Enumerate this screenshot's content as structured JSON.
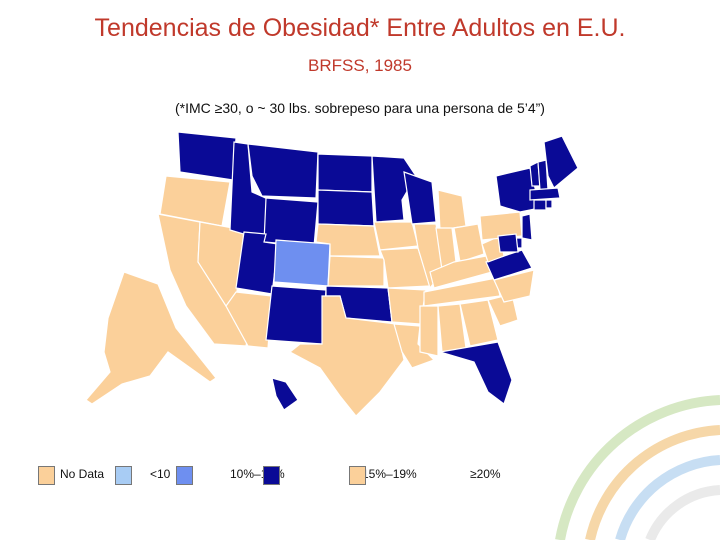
{
  "header": {
    "title": "Tendencias de Obesidad* Entre Adultos en E.U.",
    "subtitle": "BRFSS, 1985",
    "note": "(*IMC ≥30, o ~ 30 lbs. sobrepeso para una persona de 5’4”)"
  },
  "legend": [
    {
      "label": "No Data",
      "color": "#fbd09a"
    },
    {
      "label": "<10",
      "color": "#a8ccf4"
    },
    {
      "label": "10%–14%",
      "color": "#6e8ff0"
    },
    {
      "label": "15%–19%",
      "color": "#0a0a96"
    },
    {
      "label": "≥20%",
      "color": "#fbd09a"
    }
  ],
  "colors": {
    "no_data": "#fbd09a",
    "lt10": "#a8ccf4",
    "p10_14": "#6e8ff0",
    "dark_blue": "#0a0a96",
    "title_red": "#c0392b",
    "state_border": "#ffffff"
  },
  "states": {
    "no_data": [
      "OR",
      "CA",
      "NV",
      "AZ",
      "NE",
      "KS",
      "TX",
      "IA",
      "MO",
      "AR",
      "LA",
      "IL",
      "IN",
      "OH",
      "KY",
      "TN",
      "MS",
      "AL",
      "GA",
      "SC",
      "NC",
      "WV",
      "PA",
      "MI",
      "AK"
    ],
    "p10_14": [
      "CO"
    ],
    "dark": [
      "WA",
      "ID",
      "MT",
      "WY",
      "UT",
      "NM",
      "ND",
      "SD",
      "MN",
      "WI",
      "OK",
      "FL",
      "VA",
      "MD",
      "NY",
      "VT",
      "NH",
      "ME",
      "MA",
      "CT",
      "RI",
      "NJ",
      "DE",
      "HI"
    ]
  }
}
